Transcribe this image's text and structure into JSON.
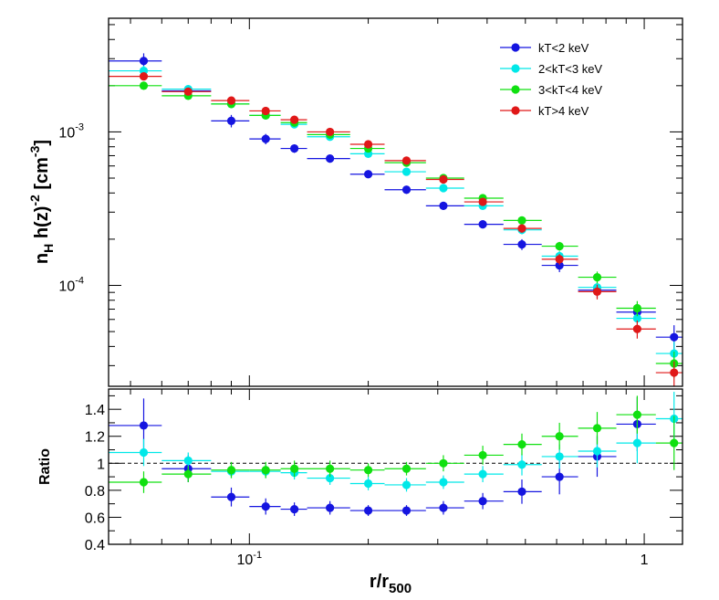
{
  "chart_data": [
    {
      "type": "scatter",
      "panel": "top",
      "x_scale": "log",
      "y_scale": "log",
      "ylabel": {
        "base": "n",
        "base_sub": "H",
        "expr": " h(z)",
        "expr_sup": "-2",
        "unit": " [cm",
        "unit_sup": "-3",
        "unit_close": "]"
      },
      "xlim": [
        0.044,
        1.25
      ],
      "ylim": [
        2.2e-05,
        0.0055
      ],
      "y_ticks": [
        {
          "value": 0.001,
          "mant": "10",
          "exp": "-3"
        },
        {
          "value": 0.0001,
          "mant": "10",
          "exp": "-4"
        }
      ],
      "legend_position": "top-right",
      "series": [
        {
          "name": "kT<2 keV",
          "color": "#1515e0",
          "x": [
            0.054,
            0.07,
            0.09,
            0.11,
            0.13,
            0.16,
            0.2,
            0.25,
            0.31,
            0.39,
            0.49,
            0.61,
            0.76,
            0.96,
            1.19
          ],
          "xlo": [
            0.044,
            0.06,
            0.08,
            0.1,
            0.12,
            0.14,
            0.18,
            0.22,
            0.28,
            0.35,
            0.44,
            0.55,
            0.68,
            0.85,
            1.07
          ],
          "xhi": [
            0.06,
            0.08,
            0.1,
            0.12,
            0.14,
            0.18,
            0.22,
            0.28,
            0.35,
            0.44,
            0.55,
            0.68,
            0.85,
            1.07,
            1.25
          ],
          "y": [
            0.0029,
            0.00185,
            0.00118,
            0.0009,
            0.00078,
            0.00067,
            0.00053,
            0.00042,
            0.00033,
            0.00025,
            0.000185,
            0.000135,
            9.3e-05,
            6.7e-05,
            4.6e-05
          ],
          "yerr": [
            0.00035,
            0.00012,
            0.00011,
            7e-05,
            5e-05,
            4e-05,
            3e-05,
            2.5e-05,
            2e-05,
            1.5e-05,
            1.5e-05,
            1.3e-05,
            1e-05,
            9e-06,
            9e-06
          ]
        },
        {
          "name": "2<kT<3 keV",
          "color": "#00e8e8",
          "x": [
            0.054,
            0.07,
            0.09,
            0.11,
            0.13,
            0.16,
            0.2,
            0.25,
            0.31,
            0.39,
            0.49,
            0.61,
            0.76,
            0.96,
            1.19
          ],
          "xlo": [
            0.044,
            0.06,
            0.08,
            0.1,
            0.12,
            0.14,
            0.18,
            0.22,
            0.28,
            0.35,
            0.44,
            0.55,
            0.68,
            0.85,
            1.07
          ],
          "xhi": [
            0.06,
            0.08,
            0.1,
            0.12,
            0.14,
            0.18,
            0.22,
            0.28,
            0.35,
            0.44,
            0.55,
            0.68,
            0.85,
            1.07,
            1.25
          ],
          "y": [
            0.0025,
            0.0019,
            0.00152,
            0.00128,
            0.00112,
            0.00093,
            0.00072,
            0.00055,
            0.00043,
            0.00033,
            0.00023,
            0.000155,
            9.7e-05,
            6.1e-05,
            3.6e-05
          ],
          "yerr": [
            0.0002,
            0.0001,
            8e-05,
            6e-05,
            5e-05,
            4e-05,
            3e-05,
            2.5e-05,
            2e-05,
            1.6e-05,
            1.5e-05,
            1.2e-05,
            1e-05,
            8e-06,
            7e-06
          ]
        },
        {
          "name": "3<kT<4 keV",
          "color": "#10e010",
          "x": [
            0.054,
            0.07,
            0.09,
            0.11,
            0.13,
            0.16,
            0.2,
            0.25,
            0.31,
            0.39,
            0.49,
            0.61,
            0.76,
            0.96,
            1.19
          ],
          "xlo": [
            0.044,
            0.06,
            0.08,
            0.1,
            0.12,
            0.14,
            0.18,
            0.22,
            0.28,
            0.35,
            0.44,
            0.55,
            0.68,
            0.85,
            1.07
          ],
          "xhi": [
            0.06,
            0.08,
            0.1,
            0.12,
            0.14,
            0.18,
            0.22,
            0.28,
            0.35,
            0.44,
            0.55,
            0.68,
            0.85,
            1.07,
            1.25
          ],
          "y": [
            0.002,
            0.00172,
            0.00152,
            0.00128,
            0.00115,
            0.00096,
            0.00078,
            0.00063,
            0.0005,
            0.00037,
            0.000265,
            0.00018,
            0.000113,
            7.1e-05,
            3.1e-05
          ],
          "yerr": [
            0.00012,
            9e-05,
            7e-05,
            6e-05,
            5e-05,
            4e-05,
            3e-05,
            2.5e-05,
            2e-05,
            1.6e-05,
            1.5e-05,
            1.2e-05,
            1e-05,
            8e-06,
            6e-06
          ]
        },
        {
          "name": "kT>4 keV",
          "color": "#e01818",
          "x": [
            0.054,
            0.07,
            0.09,
            0.11,
            0.13,
            0.16,
            0.2,
            0.25,
            0.31,
            0.39,
            0.49,
            0.61,
            0.76,
            0.96,
            1.19
          ],
          "xlo": [
            0.044,
            0.06,
            0.08,
            0.1,
            0.12,
            0.14,
            0.18,
            0.22,
            0.28,
            0.35,
            0.44,
            0.55,
            0.68,
            0.85,
            1.07
          ],
          "xhi": [
            0.06,
            0.08,
            0.1,
            0.12,
            0.14,
            0.18,
            0.22,
            0.28,
            0.35,
            0.44,
            0.55,
            0.68,
            0.85,
            1.07,
            1.25
          ],
          "y": [
            0.0023,
            0.00183,
            0.0016,
            0.00137,
            0.0012,
            0.001,
            0.00083,
            0.00065,
            0.00049,
            0.00035,
            0.000235,
            0.000148,
            9.1e-05,
            5.2e-05,
            2.7e-05
          ],
          "yerr": [
            0.00012,
            9e-05,
            7e-05,
            6e-05,
            5e-05,
            4e-05,
            3e-05,
            2.5e-05,
            2e-05,
            1.6e-05,
            1.5e-05,
            1.2e-05,
            1e-05,
            7e-06,
            5e-06
          ]
        }
      ]
    },
    {
      "type": "scatter",
      "panel": "bottom",
      "x_scale": "log",
      "ylabel": "Ratio",
      "xlabel": {
        "base": "r/r",
        "sub": "500"
      },
      "xlim": [
        0.044,
        1.25
      ],
      "ylim": [
        0.4,
        1.55
      ],
      "y_ticks": [
        {
          "value": 0.4,
          "label": "0.4"
        },
        {
          "value": 0.6,
          "label": "0.6"
        },
        {
          "value": 0.8,
          "label": "0.8"
        },
        {
          "value": 1.0,
          "label": "1"
        },
        {
          "value": 1.2,
          "label": "1.2"
        },
        {
          "value": 1.4,
          "label": "1.4"
        }
      ],
      "x_ticks": [
        {
          "value": 0.1,
          "mant": "10",
          "exp": "-1"
        },
        {
          "value": 1.0,
          "label": "1"
        }
      ],
      "reference_line": 1.0,
      "series": [
        {
          "name": "kT<2 keV",
          "color": "#1515e0",
          "x": [
            0.054,
            0.07,
            0.09,
            0.11,
            0.13,
            0.16,
            0.2,
            0.25,
            0.31,
            0.39,
            0.49,
            0.61,
            0.76,
            0.96,
            1.19
          ],
          "xlo": [
            0.044,
            0.06,
            0.08,
            0.1,
            0.12,
            0.14,
            0.18,
            0.22,
            0.28,
            0.35,
            0.44,
            0.55,
            0.68,
            0.85,
            1.07
          ],
          "xhi": [
            0.06,
            0.08,
            0.1,
            0.12,
            0.14,
            0.18,
            0.22,
            0.28,
            0.35,
            0.44,
            0.55,
            0.68,
            0.85,
            1.07,
            1.25
          ],
          "y": [
            1.28,
            0.96,
            0.75,
            0.68,
            0.66,
            0.67,
            0.65,
            0.65,
            0.67,
            0.72,
            0.79,
            0.9,
            1.05,
            1.29,
            null
          ],
          "yerr": [
            0.2,
            0.1,
            0.07,
            0.06,
            0.05,
            0.05,
            0.04,
            0.04,
            0.05,
            0.06,
            0.09,
            0.13,
            0.15,
            0.2,
            0
          ]
        },
        {
          "name": "2<kT<3 keV",
          "color": "#00e8e8",
          "x": [
            0.054,
            0.07,
            0.09,
            0.11,
            0.13,
            0.16,
            0.2,
            0.25,
            0.31,
            0.39,
            0.49,
            0.61,
            0.76,
            0.96,
            1.19
          ],
          "xlo": [
            0.044,
            0.06,
            0.08,
            0.1,
            0.12,
            0.14,
            0.18,
            0.22,
            0.28,
            0.35,
            0.44,
            0.55,
            0.68,
            0.85,
            1.07
          ],
          "xhi": [
            0.06,
            0.08,
            0.1,
            0.12,
            0.14,
            0.18,
            0.22,
            0.28,
            0.35,
            0.44,
            0.55,
            0.68,
            0.85,
            1.07,
            1.25
          ],
          "y": [
            1.08,
            1.02,
            0.94,
            0.94,
            0.93,
            0.89,
            0.85,
            0.84,
            0.86,
            0.92,
            0.99,
            1.05,
            1.09,
            1.15,
            1.33
          ],
          "yerr": [
            0.1,
            0.06,
            0.05,
            0.05,
            0.05,
            0.05,
            0.05,
            0.05,
            0.05,
            0.06,
            0.08,
            0.09,
            0.12,
            0.15,
            0.2
          ]
        },
        {
          "name": "3<kT<4 keV",
          "color": "#10e010",
          "x": [
            0.054,
            0.07,
            0.09,
            0.11,
            0.13,
            0.16,
            0.2,
            0.25,
            0.31,
            0.39,
            0.49,
            0.61,
            0.76,
            0.96,
            1.19
          ],
          "xlo": [
            0.044,
            0.06,
            0.08,
            0.1,
            0.12,
            0.14,
            0.18,
            0.22,
            0.28,
            0.35,
            0.44,
            0.55,
            0.68,
            0.85,
            1.07
          ],
          "xhi": [
            0.06,
            0.08,
            0.1,
            0.12,
            0.14,
            0.18,
            0.22,
            0.28,
            0.35,
            0.44,
            0.55,
            0.68,
            0.85,
            1.07,
            1.25
          ],
          "y": [
            0.86,
            0.92,
            0.95,
            0.95,
            0.96,
            0.96,
            0.95,
            0.96,
            1.0,
            1.06,
            1.14,
            1.2,
            1.26,
            1.36,
            1.15
          ],
          "yerr": [
            0.08,
            0.06,
            0.06,
            0.06,
            0.06,
            0.06,
            0.05,
            0.05,
            0.06,
            0.07,
            0.08,
            0.1,
            0.12,
            0.14,
            0.2
          ]
        }
      ]
    }
  ]
}
